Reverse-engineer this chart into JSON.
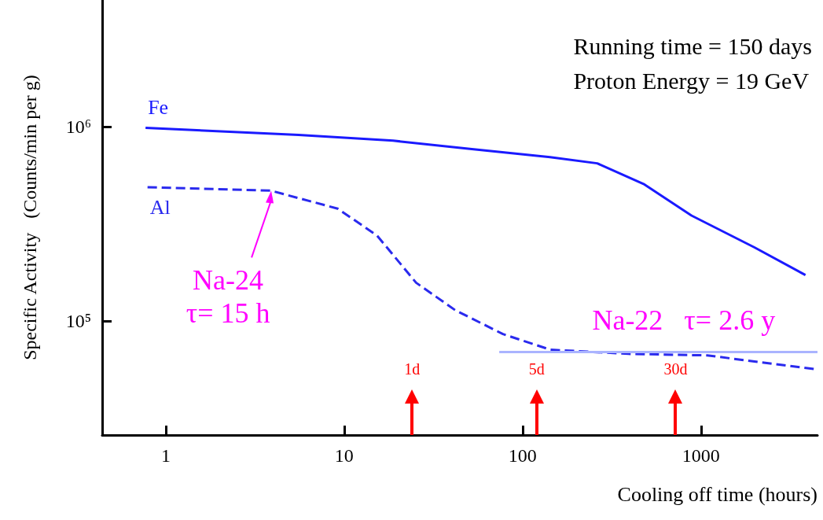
{
  "chart_data": {
    "type": "line",
    "xlabel": "Cooling off time (hours)",
    "ylabel": "Specific Activity   (Counts/min per g)",
    "log": "xy",
    "xlim": [
      0.44,
      4500
    ],
    "ylim": [
      26000,
      4500000
    ],
    "xticks": [
      1,
      10,
      100,
      1000
    ],
    "yticks": [
      {
        "value": 100000,
        "label": "10⁵"
      },
      {
        "value": 1000000,
        "label": "10⁶"
      }
    ],
    "ref_lines": [
      {
        "axis": "x",
        "value": 24,
        "label": "1d",
        "color": "#ff0000"
      },
      {
        "axis": "x",
        "value": 120,
        "label": "5d",
        "color": "#ff0000"
      },
      {
        "axis": "x",
        "value": 720,
        "label": "30d",
        "color": "#ff0000"
      }
    ],
    "grid": false,
    "legend": false,
    "marker": "none",
    "series": [
      {
        "name": "Fe",
        "color": "#1a1aff",
        "line_style": "solid",
        "x": [
          0.77,
          5.55,
          18.8,
          51.9,
          142.6,
          262,
          482,
          885,
          1995,
          3853
        ],
        "values": [
          990000,
          910000,
          850000,
          770000,
          700000,
          650000,
          506000,
          350000,
          240000,
          173000
        ]
      },
      {
        "name": "Al",
        "color": "#2a2aee",
        "line_style": "dashed",
        "x": [
          0.79,
          3.89,
          9.2,
          15.3,
          25.3,
          42,
          77.6,
          142.6,
          392,
          1084,
          4500
        ],
        "values": [
          490000,
          470000,
          380000,
          276000,
          158000,
          114000,
          86000,
          71500,
          68000,
          66800,
          56500
        ]
      },
      {
        "color": "#aab4ff",
        "line_style": "solid",
        "x": [
          74,
          4500
        ],
        "values": [
          69500,
          69500
        ]
      }
    ],
    "annotations": [
      "Running time = 150 days",
      "Proton Energy = 19 GeV",
      {
        "text": "Na-24\nτ= 15 h",
        "x": 3.9,
        "y": 470000
      },
      {
        "text": "Na-22   τ= 2.6 y",
        "x": 800,
        "y": 69500
      }
    ]
  }
}
